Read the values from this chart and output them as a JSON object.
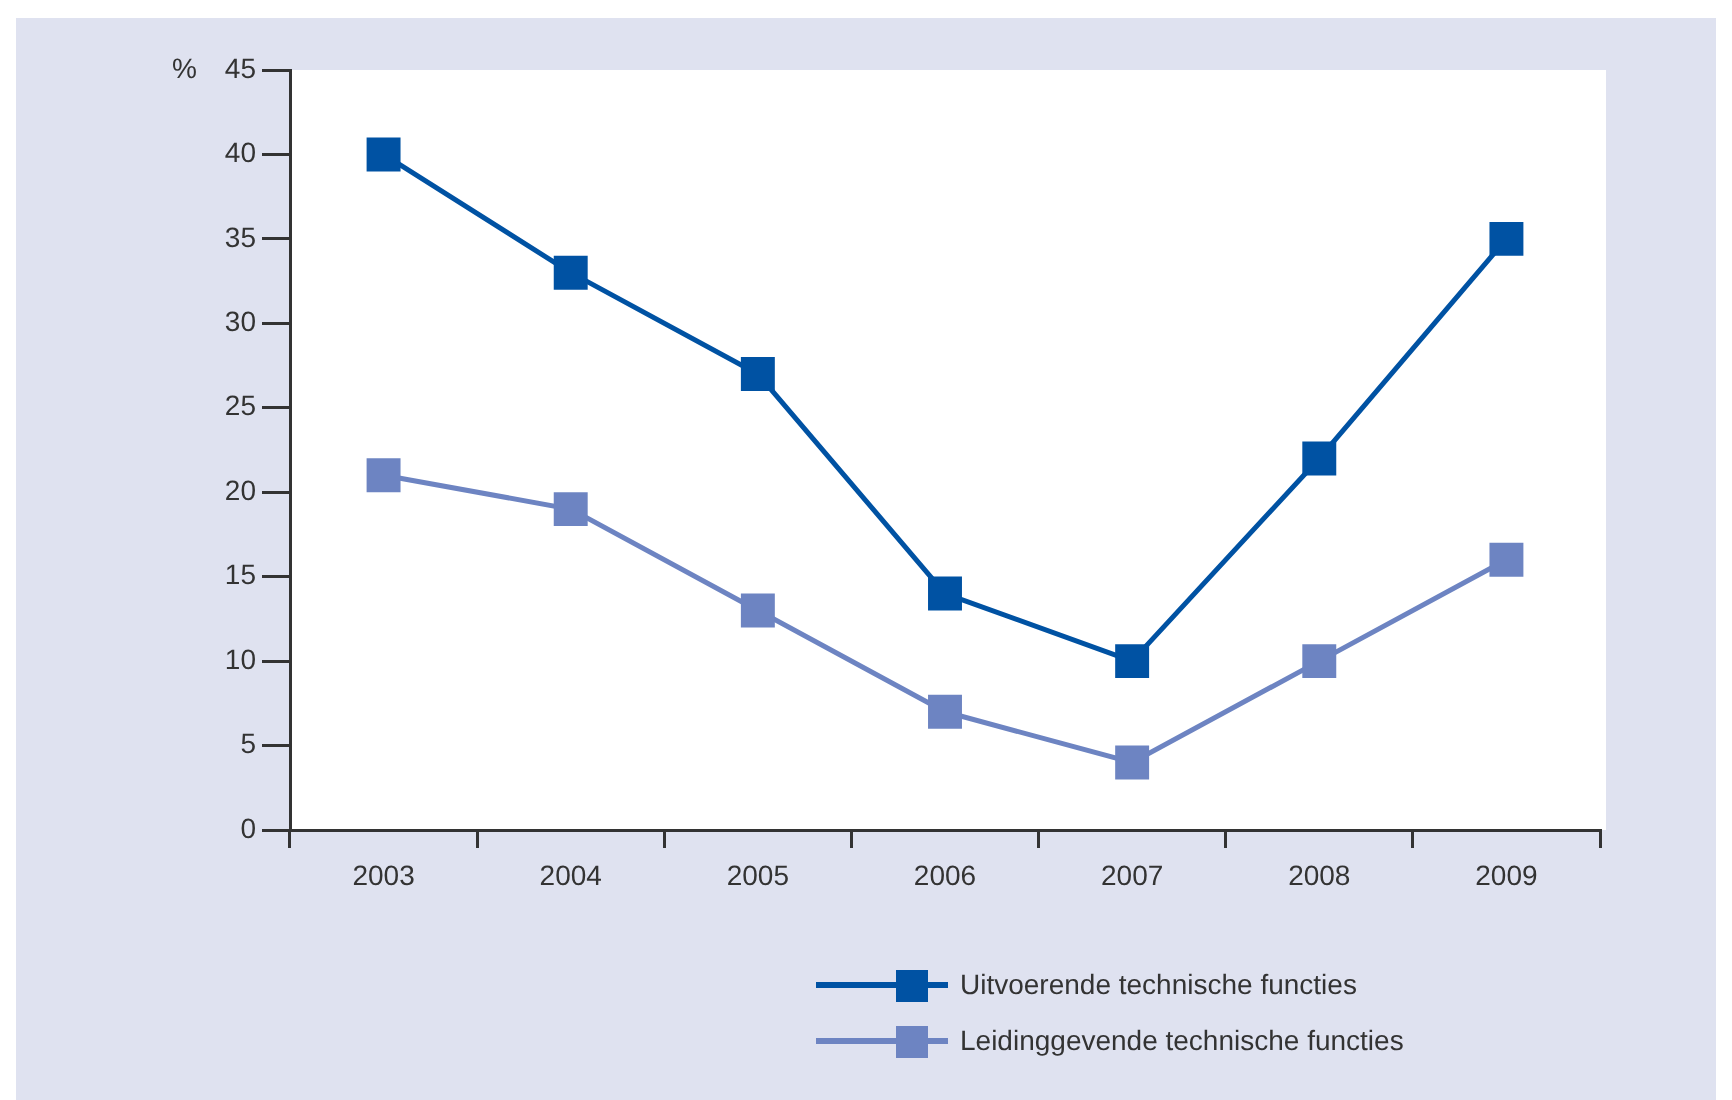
{
  "chart_data": {
    "type": "line",
    "ylabel": "%",
    "categories": [
      "2003",
      "2004",
      "2005",
      "2006",
      "2007",
      "2008",
      "2009"
    ],
    "series": [
      {
        "name": "Uitvoerende technische functies",
        "color": "#0052a3",
        "values": [
          40,
          33,
          27,
          14,
          10,
          22,
          35
        ]
      },
      {
        "name": "Leidinggevende technische functies",
        "color": "#6d84c2",
        "values": [
          21,
          19,
          13,
          7,
          4,
          10,
          16
        ]
      }
    ],
    "ylim": [
      0,
      45
    ],
    "yticks": [
      0,
      5,
      10,
      15,
      20,
      25,
      30,
      35,
      40,
      45
    ],
    "legend": "bottom",
    "marker": "square",
    "line_style": "solid"
  }
}
